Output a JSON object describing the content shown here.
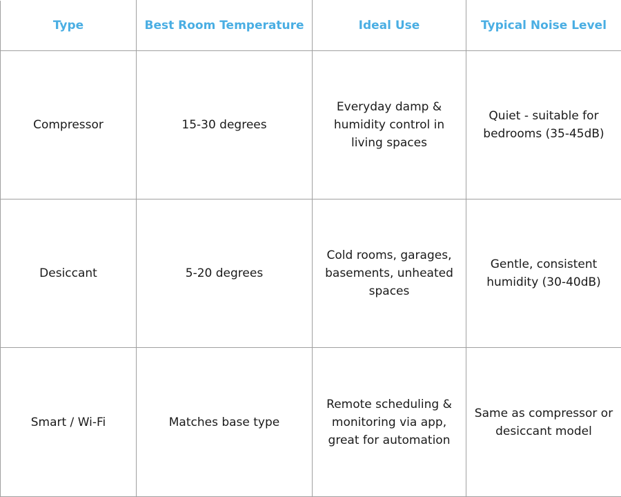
{
  "colors": {
    "header_text": "#4aaee3",
    "border": "#a0a0a0",
    "body_text": "#1a1a1a"
  },
  "table": {
    "headers": [
      "Type",
      "Best Room Temperature",
      "Ideal Use",
      "Typical Noise Level"
    ],
    "rows": [
      [
        "Compressor",
        "15-30 degrees",
        "Everyday damp & humidity control in living spaces",
        "Quiet - suitable for bedrooms (35-45dB)"
      ],
      [
        "Desiccant",
        "5-20 degrees",
        "Cold rooms, garages, basements, unheated spaces",
        "Gentle, consistent humidity (30-40dB)"
      ],
      [
        "Smart / Wi-Fi",
        "Matches base type",
        "Remote scheduling & monitoring via app, great for automation",
        "Same as compressor or desiccant model"
      ]
    ]
  }
}
